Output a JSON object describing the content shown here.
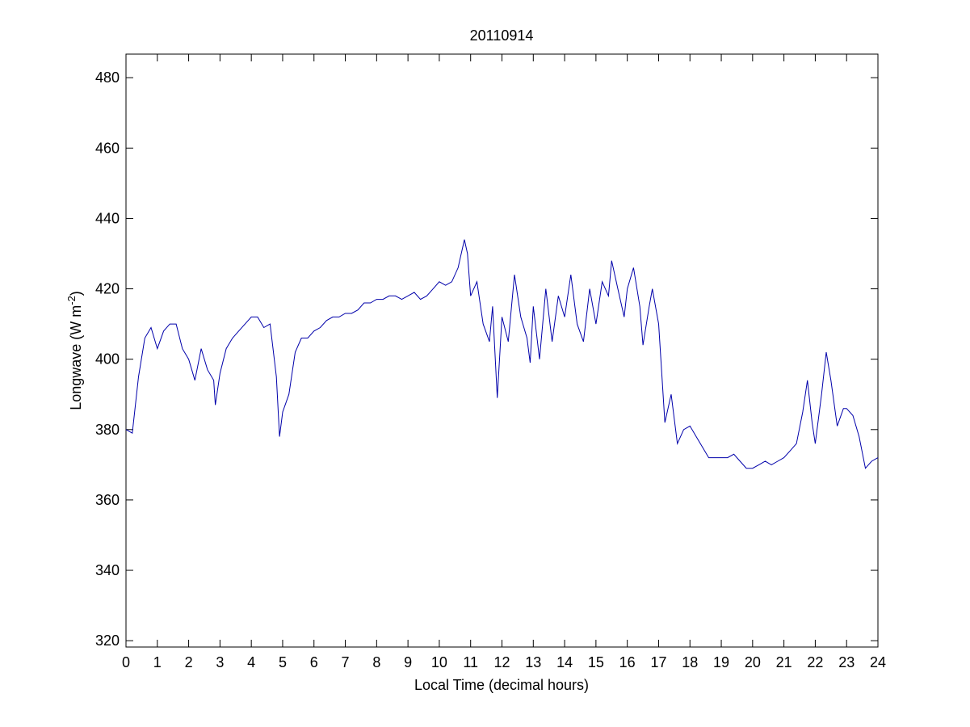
{
  "chart_data": {
    "type": "line",
    "title": "20110914",
    "xlabel": "Local Time (decimal hours)",
    "ylabel": {
      "text": "Longwave (W m",
      "superscript": "-2",
      "suffix": ")"
    },
    "xlim": [
      0,
      24
    ],
    "xticks": [
      0,
      1,
      2,
      3,
      4,
      5,
      6,
      7,
      8,
      9,
      10,
      11,
      12,
      13,
      14,
      15,
      16,
      17,
      18,
      19,
      20,
      21,
      22,
      23,
      24
    ],
    "ylim": [
      318.2,
      486.7
    ],
    "yticks": [
      320,
      340,
      360,
      380,
      400,
      420,
      440,
      460,
      480
    ],
    "grid": false,
    "series": [
      {
        "color": "#0000aa",
        "x": [
          0,
          0.2,
          0.4,
          0.6,
          0.8,
          1.0,
          1.2,
          1.4,
          1.6,
          1.8,
          2.0,
          2.2,
          2.4,
          2.6,
          2.8,
          2.85,
          3.0,
          3.2,
          3.4,
          3.6,
          3.8,
          4.0,
          4.2,
          4.4,
          4.6,
          4.8,
          4.9,
          5.0,
          5.2,
          5.4,
          5.6,
          5.8,
          6.0,
          6.2,
          6.4,
          6.6,
          6.8,
          7.0,
          7.2,
          7.4,
          7.6,
          7.8,
          8.0,
          8.2,
          8.4,
          8.6,
          8.8,
          9.0,
          9.2,
          9.4,
          9.6,
          9.8,
          10.0,
          10.2,
          10.4,
          10.6,
          10.8,
          10.9,
          11.0,
          11.2,
          11.4,
          11.6,
          11.7,
          11.85,
          12.0,
          12.2,
          12.4,
          12.6,
          12.8,
          12.9,
          13.0,
          13.2,
          13.4,
          13.6,
          13.8,
          14.0,
          14.2,
          14.4,
          14.6,
          14.8,
          15.0,
          15.2,
          15.4,
          15.5,
          15.7,
          15.9,
          16.0,
          16.2,
          16.4,
          16.5,
          16.7,
          16.8,
          17.0,
          17.2,
          17.4,
          17.6,
          17.8,
          18.0,
          18.2,
          18.4,
          18.6,
          18.8,
          19.0,
          19.2,
          19.4,
          19.6,
          19.8,
          20.0,
          20.2,
          20.4,
          20.6,
          20.8,
          21.0,
          21.2,
          21.4,
          21.6,
          21.75,
          21.9,
          22.0,
          22.2,
          22.35,
          22.5,
          22.7,
          22.9,
          23.0,
          23.2,
          23.4,
          23.6,
          23.8,
          24
        ],
        "values": [
          380,
          379,
          395,
          406,
          409,
          403,
          408,
          410,
          410,
          403,
          400,
          394,
          403,
          397,
          394,
          387,
          396,
          403,
          406,
          408,
          410,
          412,
          412,
          409,
          410,
          395,
          378,
          385,
          390,
          402,
          406,
          406,
          408,
          409,
          411,
          412,
          412,
          413,
          413,
          414,
          416,
          416,
          417,
          417,
          418,
          418,
          417,
          418,
          419,
          417,
          418,
          420,
          422,
          421,
          422,
          426,
          434,
          430,
          418,
          422,
          410,
          405,
          415,
          389,
          412,
          405,
          424,
          412,
          406,
          399,
          415,
          400,
          420,
          405,
          418,
          412,
          424,
          410,
          405,
          420,
          410,
          422,
          418,
          428,
          420,
          412,
          420,
          426,
          415,
          404,
          415,
          420,
          410,
          382,
          390,
          376,
          380,
          381,
          378,
          375,
          372,
          372,
          372,
          372,
          373,
          371,
          369,
          369,
          370,
          371,
          370,
          371,
          372,
          374,
          376,
          385,
          394,
          382,
          376,
          390,
          402,
          394,
          381,
          386,
          386,
          384,
          378,
          369,
          371,
          372
        ]
      }
    ]
  }
}
